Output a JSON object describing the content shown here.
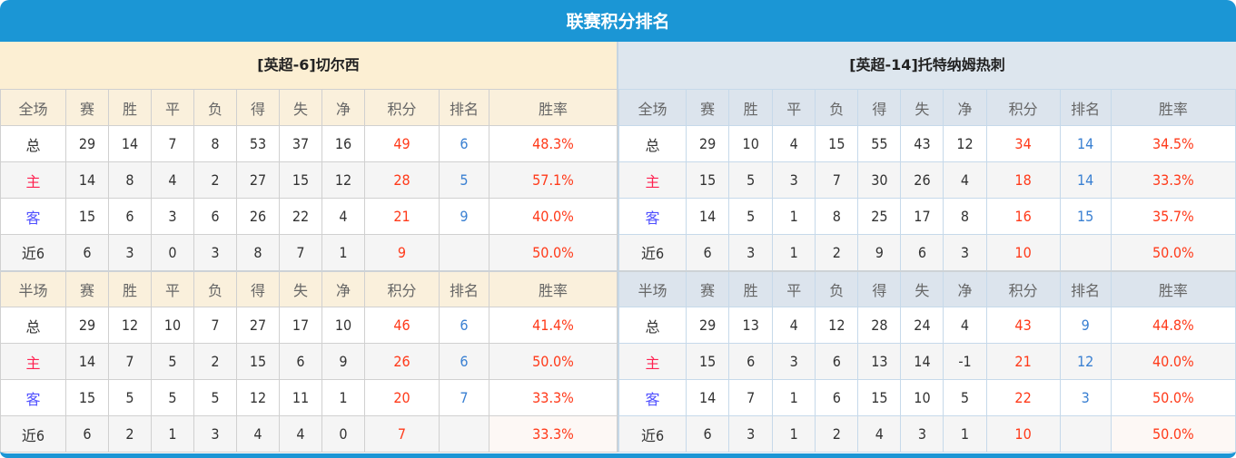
{
  "title": "联赛积分排名",
  "colors": {
    "header": "#1b96d5",
    "points": "#ff3a1a",
    "rank": "#3a80d2",
    "home": "#ff2050",
    "away": "#5050ff"
  },
  "teams": [
    {
      "name": "[英超-6]切尔西",
      "full": {
        "header": [
          "全场",
          "赛",
          "胜",
          "平",
          "负",
          "得",
          "失",
          "净",
          "积分",
          "排名",
          "胜率"
        ],
        "rows": [
          [
            "总",
            "29",
            "14",
            "7",
            "8",
            "53",
            "37",
            "16",
            "49",
            "6",
            "48.3%"
          ],
          [
            "主",
            "14",
            "8",
            "4",
            "2",
            "27",
            "15",
            "12",
            "28",
            "5",
            "57.1%"
          ],
          [
            "客",
            "15",
            "6",
            "3",
            "6",
            "26",
            "22",
            "4",
            "21",
            "9",
            "40.0%"
          ],
          [
            "近6",
            "6",
            "3",
            "0",
            "3",
            "8",
            "7",
            "1",
            "9",
            "",
            "50.0%"
          ]
        ]
      },
      "half": {
        "header": [
          "半场",
          "赛",
          "胜",
          "平",
          "负",
          "得",
          "失",
          "净",
          "积分",
          "排名",
          "胜率"
        ],
        "rows": [
          [
            "总",
            "29",
            "12",
            "10",
            "7",
            "27",
            "17",
            "10",
            "46",
            "6",
            "41.4%"
          ],
          [
            "主",
            "14",
            "7",
            "5",
            "2",
            "15",
            "6",
            "9",
            "26",
            "6",
            "50.0%"
          ],
          [
            "客",
            "15",
            "5",
            "5",
            "5",
            "12",
            "11",
            "1",
            "20",
            "7",
            "33.3%"
          ],
          [
            "近6",
            "6",
            "2",
            "1",
            "3",
            "4",
            "4",
            "0",
            "7",
            "",
            "33.3%"
          ]
        ]
      }
    },
    {
      "name": "[英超-14]托特纳姆热刺",
      "full": {
        "header": [
          "全场",
          "赛",
          "胜",
          "平",
          "负",
          "得",
          "失",
          "净",
          "积分",
          "排名",
          "胜率"
        ],
        "rows": [
          [
            "总",
            "29",
            "10",
            "4",
            "15",
            "55",
            "43",
            "12",
            "34",
            "14",
            "34.5%"
          ],
          [
            "主",
            "15",
            "5",
            "3",
            "7",
            "30",
            "26",
            "4",
            "18",
            "14",
            "33.3%"
          ],
          [
            "客",
            "14",
            "5",
            "1",
            "8",
            "25",
            "17",
            "8",
            "16",
            "15",
            "35.7%"
          ],
          [
            "近6",
            "6",
            "3",
            "1",
            "2",
            "9",
            "6",
            "3",
            "10",
            "",
            "50.0%"
          ]
        ]
      },
      "half": {
        "header": [
          "半场",
          "赛",
          "胜",
          "平",
          "负",
          "得",
          "失",
          "净",
          "积分",
          "排名",
          "胜率"
        ],
        "rows": [
          [
            "总",
            "29",
            "13",
            "4",
            "12",
            "28",
            "24",
            "4",
            "43",
            "9",
            "44.8%"
          ],
          [
            "主",
            "15",
            "6",
            "3",
            "6",
            "13",
            "14",
            "-1",
            "21",
            "12",
            "40.0%"
          ],
          [
            "客",
            "14",
            "7",
            "1",
            "6",
            "15",
            "10",
            "5",
            "22",
            "3",
            "50.0%"
          ],
          [
            "近6",
            "6",
            "3",
            "1",
            "2",
            "4",
            "3",
            "1",
            "10",
            "",
            "50.0%"
          ]
        ]
      }
    }
  ]
}
